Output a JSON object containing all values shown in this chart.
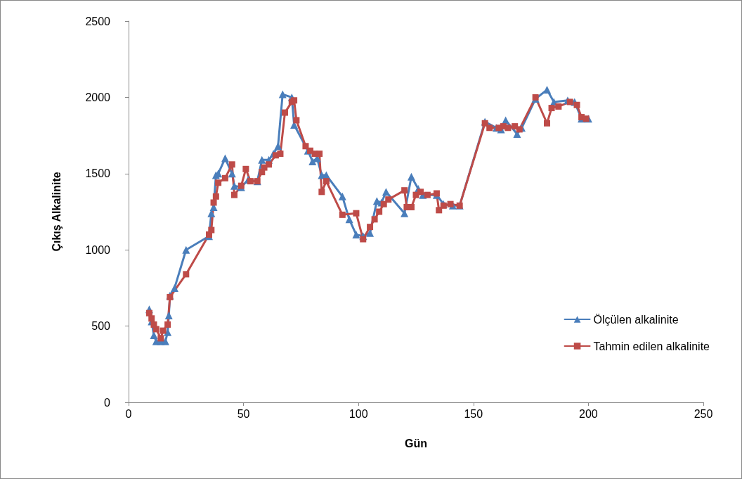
{
  "chart_data": {
    "type": "line",
    "xlabel": "Gün",
    "ylabel": "Çıkış Alkalinite",
    "xlim": [
      0,
      250
    ],
    "xticks": [
      0,
      50,
      100,
      150,
      200,
      250
    ],
    "ylim": [
      0,
      2500
    ],
    "yticks": [
      0,
      500,
      1000,
      1500,
      2000,
      2500
    ],
    "grid": false,
    "legend": "right",
    "series": [
      {
        "name": "Ölçülen alkalinite",
        "color": "#4a7ebb",
        "marker": "triangle",
        "x": [
          9,
          10,
          11,
          12,
          14,
          16,
          17,
          17.5,
          18,
          20,
          25,
          35,
          36,
          37,
          38,
          39,
          42,
          45,
          46,
          49,
          52,
          56,
          58,
          61,
          63,
          65,
          67,
          71,
          72,
          78,
          80,
          82,
          84,
          86,
          93,
          96,
          99,
          102,
          105,
          108,
          110,
          112,
          120,
          123,
          126,
          128,
          134,
          137,
          141,
          144,
          155,
          160,
          162,
          164,
          169,
          171,
          177,
          182,
          185,
          191,
          194,
          197,
          200
        ],
        "values": [
          610,
          530,
          440,
          400,
          400,
          400,
          460,
          570,
          700,
          750,
          1000,
          1090,
          1240,
          1280,
          1490,
          1500,
          1600,
          1500,
          1420,
          1410,
          1460,
          1450,
          1590,
          1590,
          1630,
          1680,
          2020,
          2000,
          1820,
          1650,
          1580,
          1600,
          1490,
          1490,
          1350,
          1200,
          1100,
          1090,
          1110,
          1320,
          1310,
          1380,
          1240,
          1480,
          1400,
          1360,
          1360,
          1300,
          1290,
          1290,
          1840,
          1800,
          1790,
          1850,
          1760,
          1800,
          1990,
          2050,
          1970,
          1980,
          1970,
          1860,
          1860
        ]
      },
      {
        "name": "Tahmin edilen alkalinite",
        "color": "#be4b48",
        "marker": "square",
        "x": [
          9,
          10,
          11,
          12,
          14,
          15,
          17,
          18,
          25,
          35,
          36,
          37,
          38,
          39,
          42,
          45,
          46,
          49,
          51,
          53,
          56,
          58,
          59,
          61,
          64,
          66,
          68,
          71,
          72,
          73,
          77,
          79,
          81,
          83,
          84,
          86,
          93,
          99,
          102,
          105,
          107,
          109,
          111,
          113,
          120,
          121,
          123,
          125,
          127,
          130,
          134,
          135,
          137,
          140,
          144,
          155,
          157,
          161,
          163,
          165,
          168,
          170,
          177,
          182,
          184,
          187,
          192,
          195,
          197,
          199
        ],
        "values": [
          585,
          550,
          510,
          480,
          420,
          470,
          510,
          690,
          840,
          1100,
          1130,
          1310,
          1350,
          1440,
          1470,
          1560,
          1360,
          1420,
          1530,
          1450,
          1450,
          1510,
          1540,
          1560,
          1620,
          1630,
          1900,
          1970,
          1980,
          1850,
          1680,
          1650,
          1630,
          1630,
          1380,
          1450,
          1230,
          1240,
          1070,
          1150,
          1200,
          1250,
          1300,
          1330,
          1390,
          1280,
          1280,
          1360,
          1380,
          1360,
          1370,
          1260,
          1290,
          1300,
          1290,
          1830,
          1800,
          1800,
          1810,
          1800,
          1810,
          1790,
          2000,
          1830,
          1930,
          1940,
          1970,
          1950,
          1870,
          1860
        ]
      }
    ]
  }
}
